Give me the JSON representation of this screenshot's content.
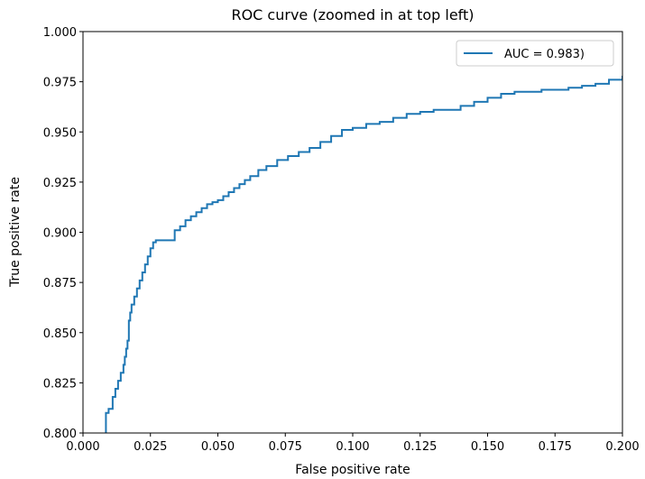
{
  "chart_data": {
    "type": "line",
    "title": "ROC curve (zoomed in at top left)",
    "xlabel": "False positive rate",
    "ylabel": "True positive rate",
    "xlim": [
      0.0,
      0.2
    ],
    "ylim": [
      0.8,
      1.0
    ],
    "xticks": [
      "0.000",
      "0.025",
      "0.050",
      "0.075",
      "0.100",
      "0.125",
      "0.150",
      "0.175",
      "0.200"
    ],
    "yticks": [
      "0.800",
      "0.825",
      "0.850",
      "0.875",
      "0.900",
      "0.925",
      "0.950",
      "0.975",
      "1.000"
    ],
    "grid": false,
    "legend_position": "top-right",
    "colors": {
      "series": "#1f77b4"
    },
    "series": [
      {
        "name": "AUC = 0.983)",
        "x": [
          0.0085,
          0.0085,
          0.0095,
          0.011,
          0.012,
          0.013,
          0.014,
          0.015,
          0.0155,
          0.016,
          0.0165,
          0.017,
          0.0175,
          0.018,
          0.019,
          0.02,
          0.021,
          0.022,
          0.023,
          0.024,
          0.025,
          0.026,
          0.027,
          0.028,
          0.029,
          0.03,
          0.034,
          0.036,
          0.038,
          0.04,
          0.042,
          0.044,
          0.046,
          0.048,
          0.05,
          0.052,
          0.054,
          0.056,
          0.058,
          0.06,
          0.062,
          0.065,
          0.068,
          0.072,
          0.076,
          0.08,
          0.084,
          0.088,
          0.092,
          0.096,
          0.1,
          0.105,
          0.11,
          0.115,
          0.12,
          0.125,
          0.13,
          0.14,
          0.145,
          0.15,
          0.155,
          0.16,
          0.17,
          0.18,
          0.185,
          0.19,
          0.195,
          0.2
        ],
        "y": [
          0.8,
          0.81,
          0.812,
          0.818,
          0.822,
          0.826,
          0.83,
          0.834,
          0.838,
          0.842,
          0.846,
          0.856,
          0.86,
          0.864,
          0.868,
          0.872,
          0.876,
          0.88,
          0.884,
          0.888,
          0.892,
          0.895,
          0.896,
          0.896,
          0.896,
          0.896,
          0.901,
          0.903,
          0.906,
          0.908,
          0.91,
          0.912,
          0.914,
          0.915,
          0.916,
          0.918,
          0.92,
          0.922,
          0.924,
          0.926,
          0.928,
          0.931,
          0.933,
          0.936,
          0.938,
          0.94,
          0.942,
          0.945,
          0.948,
          0.951,
          0.952,
          0.954,
          0.955,
          0.957,
          0.959,
          0.96,
          0.961,
          0.963,
          0.965,
          0.967,
          0.969,
          0.97,
          0.971,
          0.972,
          0.973,
          0.974,
          0.976,
          0.978
        ]
      }
    ]
  }
}
